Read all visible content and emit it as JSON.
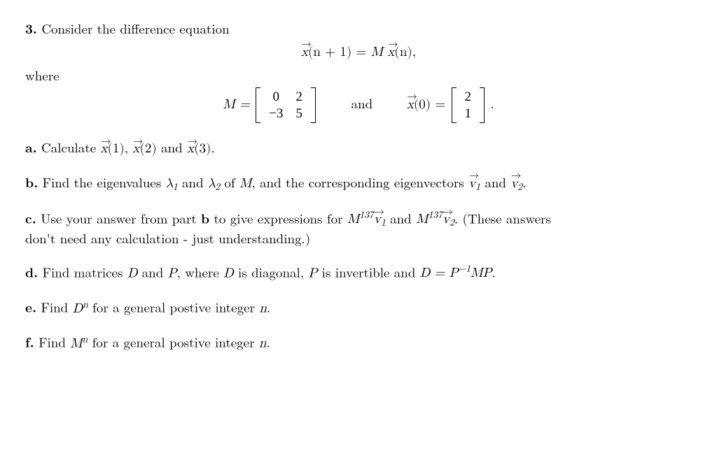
{
  "problem": {
    "number": "3.",
    "intro": "Consider the difference equation",
    "mainEq": {
      "lhs_vec": "x⃗",
      "lhs_arg": "(n + 1)",
      "eq": " = ",
      "rhs_M": "M ",
      "rhs_vec": "x⃗",
      "rhs_arg": "(n),"
    },
    "whereLabel": "where",
    "matrixLine": {
      "M_eq": "M = ",
      "M": [
        [
          "0",
          "2"
        ],
        [
          "−3",
          "5"
        ]
      ],
      "and": "and",
      "x0_vec": "x⃗",
      "x0_arg": "(0) = ",
      "x0": [
        [
          "2"
        ],
        [
          "1"
        ]
      ],
      "period": "."
    },
    "parts": {
      "a": {
        "label": "a.",
        "pre": "Calculate ",
        "x1": "x⃗(1)",
        "c1": ", ",
        "x2": "x⃗(2)",
        "c2": " and ",
        "x3": "x⃗(3)",
        "post": "."
      },
      "b": {
        "label": "b.",
        "pre": "Find the eigenvalues ",
        "l1": "λ",
        "s1": "1",
        "and1": " and ",
        "l2": "λ",
        "s2": "2",
        "mid": " of ",
        "M": "M",
        "mid2": ", and the corresponding eigenvectors ",
        "v1": "v⃗",
        "vs1": "1",
        "and2": " and ",
        "v2": "v⃗",
        "vs2": "2",
        "post": "."
      },
      "c": {
        "label": "c.",
        "pre": "Use your answer from part ",
        "bref": "b",
        "mid": " to give expressions for ",
        "M1": "M",
        "exp": "137",
        "v1": "v⃗",
        "vs1": "1",
        "and": " and ",
        "M2": "M",
        "v2": "v⃗",
        "vs2": "2",
        "post1": ". (These answers",
        "line2": "don't need any calculation - just understanding.)"
      },
      "d": {
        "label": "d.",
        "pre": "Find matrices ",
        "D": "D",
        "and1": " and ",
        "P": "P",
        "mid": ", where ",
        "D2": "D",
        "mid2": " is diagonal, ",
        "P2": "P",
        "mid3": " is invertible and ",
        "eq": "D = P",
        "supm1": "−1",
        "MP": "MP",
        "post": "."
      },
      "e": {
        "label": "e.",
        "pre": "Find ",
        "D": "D",
        "n": "n",
        "mid": " for a general postive integer ",
        "nvar": "n",
        "post": "."
      },
      "f": {
        "label": "f.",
        "pre": "Find ",
        "M": "M",
        "n": "n",
        "mid": " for a general postive integer ",
        "nvar": "n",
        "post": "."
      }
    }
  },
  "style": {
    "text_color": "#000000",
    "background_color": "#ffffff",
    "font_size_pt": 14,
    "font_family": "Computer Modern / Latin Modern (serif)",
    "bold_labels": true
  }
}
